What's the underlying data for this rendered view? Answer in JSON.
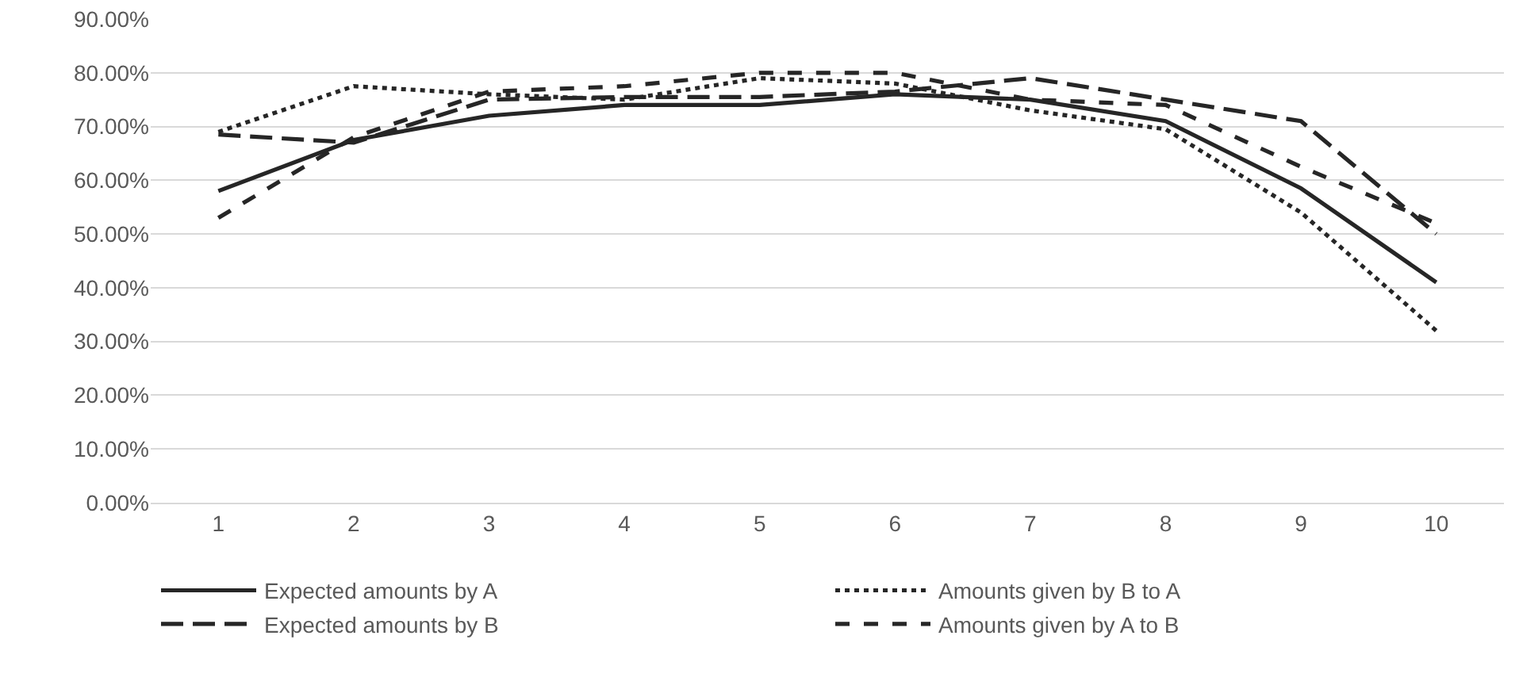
{
  "chart_data": {
    "type": "line",
    "categories": [
      "1",
      "2",
      "3",
      "4",
      "5",
      "6",
      "7",
      "8",
      "9",
      "10"
    ],
    "series": [
      {
        "name": "Expected amounts by A",
        "color": "#262626",
        "line_style": "solid",
        "values": [
          58,
          67.5,
          72,
          74,
          74,
          76,
          75,
          71,
          58.5,
          41
        ]
      },
      {
        "name": "Amounts given by B to A",
        "color": "#262626",
        "line_style": "dotted",
        "values": [
          69,
          77.5,
          76,
          75,
          79,
          78,
          73,
          69.5,
          54,
          32
        ]
      },
      {
        "name": "Expected amounts by B",
        "color": "#262626",
        "line_style": "longdash",
        "values": [
          68.5,
          67,
          75,
          75.5,
          75.5,
          76.5,
          79,
          75,
          71,
          50
        ]
      },
      {
        "name": "Amounts given by A to B",
        "color": "#262626",
        "line_style": "dashed",
        "values": [
          53,
          68,
          76.5,
          77.5,
          80,
          80,
          75,
          74,
          62.5,
          52
        ]
      }
    ],
    "ylim": [
      0,
      90
    ],
    "yticks": [
      {
        "value": 0,
        "label": "0.00%"
      },
      {
        "value": 10,
        "label": "10.00%"
      },
      {
        "value": 20,
        "label": "20.00%"
      },
      {
        "value": 30,
        "label": "30.00%"
      },
      {
        "value": 40,
        "label": "40.00%"
      },
      {
        "value": 50,
        "label": "50.00%"
      },
      {
        "value": 60,
        "label": "60.00%"
      },
      {
        "value": 70,
        "label": "70.00%"
      },
      {
        "value": 80,
        "label": "80.00%"
      },
      {
        "value": 90,
        "label": "90.00%"
      }
    ],
    "grid": "y",
    "legend": "bottom",
    "marker": "none"
  }
}
